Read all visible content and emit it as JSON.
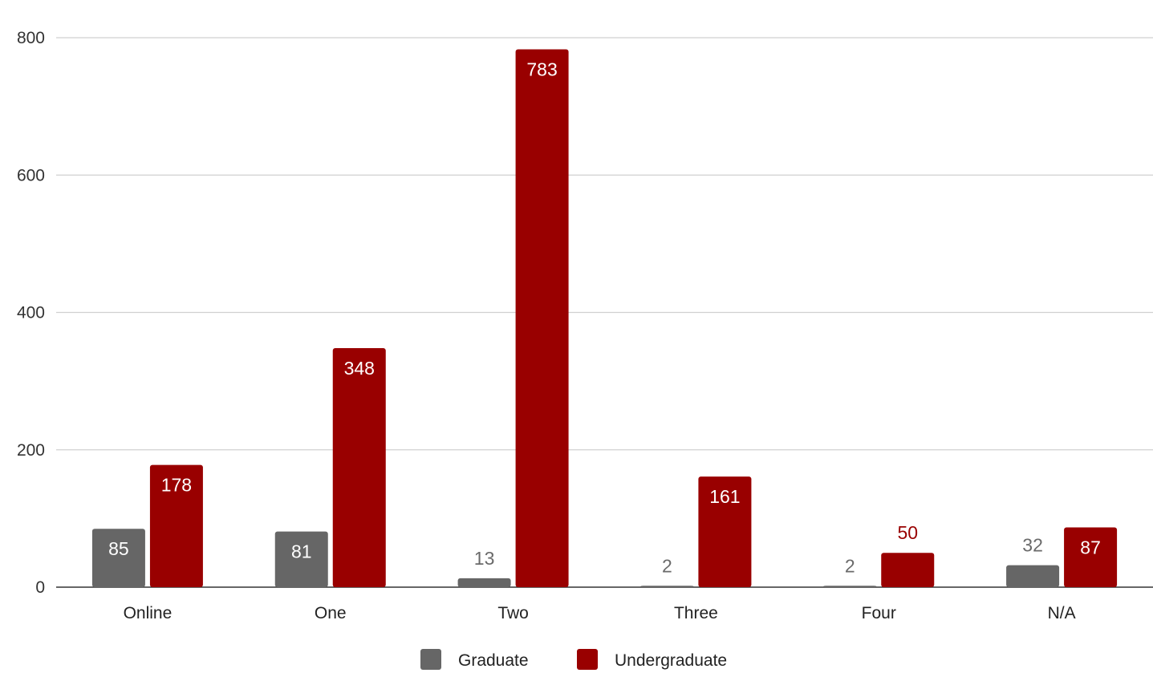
{
  "chart_data": {
    "type": "bar",
    "categories": [
      "Online",
      "One",
      "Two",
      "Three",
      "Four",
      "N/A"
    ],
    "series": [
      {
        "name": "Graduate",
        "color": "#666666",
        "values": [
          85,
          81,
          13,
          2,
          2,
          32
        ]
      },
      {
        "name": "Undergraduate",
        "color": "#990000",
        "values": [
          178,
          348,
          783,
          161,
          50,
          87
        ]
      }
    ],
    "ylim": [
      0,
      800
    ],
    "yticks": [
      0,
      200,
      400,
      600,
      800
    ],
    "grid": true,
    "legend_position": "bottom",
    "data_labels": true
  }
}
